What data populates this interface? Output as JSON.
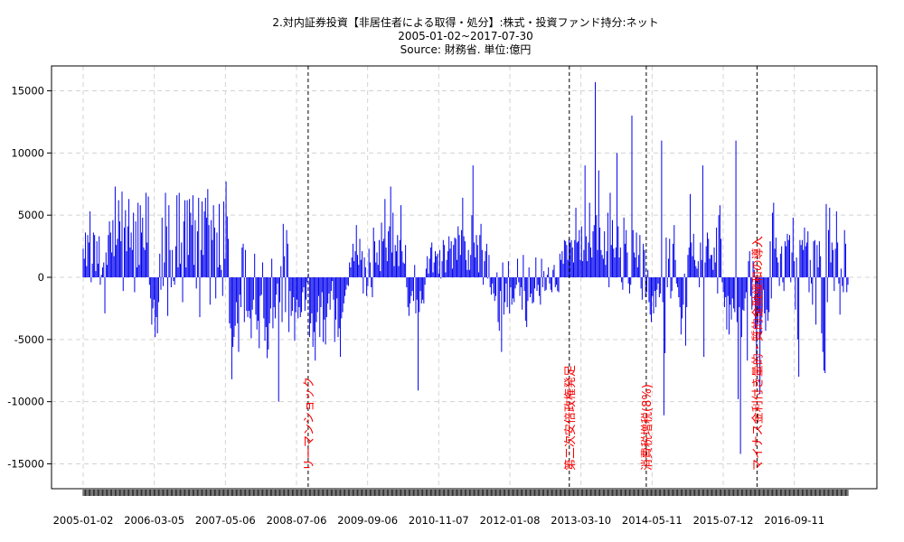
{
  "title": {
    "line1": "2.対内証券投資【非居住者による取得・処分】:株式・投資ファンド持分:ネット",
    "line2": "2005-01-02~2017-07-30",
    "line3": "Source: 財務省.  単位:億円"
  },
  "colors": {
    "bars": "#0000ee",
    "event_line": "#000000",
    "event_label": "#ff0000",
    "grid": "#d3d3d3"
  },
  "chart_data": {
    "type": "bar",
    "x_range": [
      "2005-01-02",
      "2017-07-30"
    ],
    "ylim": [
      -17000,
      17000
    ],
    "grid": true,
    "y_ticks": [
      -15000,
      -10000,
      -5000,
      0,
      5000,
      10000,
      15000
    ],
    "y_tick_labels": [
      "-15000",
      "-10000",
      "-5000",
      "0",
      "5000",
      "10000",
      "15000"
    ],
    "x_tick_labels": [
      "2005-01-02",
      "2006-03-05",
      "2007-05-06",
      "2008-07-06",
      "2009-09-06",
      "2010-11-07",
      "2012-01-08",
      "2013-03-10",
      "2014-05-11",
      "2015-07-12",
      "2016-09-11"
    ],
    "events": [
      {
        "label": "リーマンショック",
        "date": "2008-09-14"
      },
      {
        "label": "第二次安倍政権発足",
        "date": "2012-12-30"
      },
      {
        "label": "消費税増税(8%)",
        "date": "2014-04-06"
      },
      {
        "label": "マイナス金利付き量的・質的金融緩和の導入",
        "date": "2016-01-31"
      }
    ],
    "series": [
      {
        "values": [
          2300,
          1500,
          3600,
          900,
          3400,
          2800,
          5300,
          -400,
          1100,
          3600,
          3400,
          500,
          2900,
          1100,
          3300,
          -600,
          200,
          800,
          1200,
          -2900,
          2000,
          1000,
          3400,
          4500,
          3600,
          2000,
          4600,
          1700,
          7300,
          2600,
          3100,
          6200,
          4500,
          2900,
          6900,
          -1100,
          4000,
          5400,
          2100,
          4100,
          6300,
          2400,
          3600,
          2200,
          5200,
          -1200,
          4500,
          800,
          6000,
          1000,
          5800,
          3600,
          4800,
          2400,
          2200,
          6800,
          2800,
          6500,
          -600,
          -1700,
          -3800,
          -2500,
          -1800,
          -4800,
          -3200,
          -4500,
          -2000,
          1900,
          -1000,
          4800,
          -700,
          1200,
          6800,
          4100,
          -3100,
          5800,
          2200,
          -800,
          2200,
          -300,
          -600,
          2500,
          6600,
          800,
          6800,
          1100,
          2800,
          -2000,
          4500,
          6200,
          800,
          6200,
          1800,
          6300,
          5200,
          4200,
          6600,
          1000,
          4600,
          -900,
          3700,
          6400,
          -3200,
          2200,
          6100,
          1800,
          5300,
          6400,
          4800,
          7100,
          4200,
          -2200,
          4600,
          3000,
          5800,
          4000,
          -1700,
          3600,
          800,
          5900,
          1000,
          600,
          -1500,
          6100,
          1500,
          7700,
          4900,
          3100,
          -3700,
          -4100,
          -8200,
          -5600,
          -4800,
          -3900,
          -2000,
          -3700,
          -6000,
          -1400,
          -2400,
          2400,
          2700,
          -3600,
          2200,
          -2700,
          -3200,
          -2700,
          -3300,
          -4900,
          -2600,
          -1800,
          1900,
          -3000,
          -4200,
          -3500,
          -5700,
          -1500,
          -1400,
          1200,
          -3300,
          -5100,
          -4000,
          -6500,
          -5800,
          -3700,
          -2500,
          1500,
          -4100,
          -2400,
          -3300,
          -1400,
          -500,
          -10000,
          -2000,
          900,
          -3600,
          4300,
          1700,
          -2800,
          3800,
          2700,
          -4400,
          -1100,
          -3100,
          -2700,
          -1600,
          -5100,
          -2800,
          -1800,
          -3300,
          -2400,
          -3200,
          -2800,
          -1200,
          -800,
          -2700,
          -1800,
          -400,
          300,
          -4800,
          -3700,
          -2900,
          -5600,
          -4400,
          -6700,
          -3600,
          -2800,
          -1500,
          -4800,
          -2400,
          -1200,
          -5200,
          -3400,
          -5400,
          -3200,
          -2100,
          -1300,
          -2600,
          -1100,
          -300,
          -1800,
          -5200,
          -3400,
          -1700,
          -4800,
          -4100,
          -6400,
          -3300,
          -2800,
          -2100,
          -1500,
          -1000,
          -600,
          -700,
          1200,
          800,
          1600,
          2700,
          1300,
          2100,
          4200,
          1800,
          1000,
          3100,
          1400,
          2100,
          -1300,
          1600,
          800,
          -1500,
          -700,
          2300,
          1200,
          -800,
          -1600,
          4000,
          2900,
          1200,
          2000,
          1000,
          3000,
          500,
          4400,
          2900,
          3100,
          6300,
          2400,
          1300,
          3700,
          4100,
          7300,
          2000,
          5200,
          900,
          2600,
          2100,
          3400,
          900,
          3000,
          5800,
          2100,
          1200,
          1100,
          2600,
          -800,
          -2400,
          -3100,
          -2100,
          -1500,
          -1100,
          -1900,
          1000,
          -2900,
          -1800,
          -9100,
          -2800,
          -1100,
          -2100,
          -1800,
          -2100,
          -600,
          700,
          1700,
          300,
          1500,
          2400,
          2800,
          400,
          1200,
          2100,
          1700,
          1900,
          300,
          2200,
          -100,
          1300,
          3000,
          2600,
          400,
          1400,
          2100,
          3300,
          2300,
          2900,
          700,
          2600,
          3200,
          3100,
          1400,
          4100,
          3400,
          1800,
          3800,
          6400,
          3300,
          2900,
          1400,
          600,
          2200,
          600,
          1800,
          5000,
          9000,
          2800,
          1600,
          3400,
          2600,
          400,
          3400,
          4300,
          2200,
          -600,
          1300,
          2100,
          2700,
          -100,
          1800,
          -800,
          -1400,
          -500,
          -1300,
          -1900,
          -1500,
          400,
          -3600,
          -4300,
          -1100,
          -6000,
          1200,
          -3000,
          -2000,
          -500,
          -2400,
          1300,
          -2900,
          -800,
          -2200,
          -1700,
          -2000,
          -900,
          -600,
          1500,
          -400,
          -1500,
          -800,
          -2600,
          1800,
          -1100,
          -3500,
          -4000,
          -1900,
          800,
          -1600,
          -1300,
          -2100,
          -2000,
          -900,
          1600,
          -1100,
          -600,
          -1500,
          -2200,
          1500,
          -800,
          500,
          -1100,
          -1000,
          200,
          800,
          -500,
          -1000,
          -1200,
          600,
          1000,
          -800,
          -600,
          -1100,
          -1200,
          1900,
          1400,
          2100,
          1100,
          3000,
          2900,
          2600,
          1400,
          3100,
          2800,
          3000,
          2400,
          1200,
          3000,
          5600,
          2800,
          2900,
          3800,
          1400,
          4100,
          1300,
          2200,
          9000,
          3300,
          1300,
          2800,
          6000,
          2400,
          1600,
          3700,
          4200,
          15700,
          5000,
          2200,
          8600,
          4000,
          2200,
          1800,
          1500,
          3700,
          1000,
          2100,
          5200,
          -800,
          6800,
          2600,
          4600,
          2300,
          1600,
          2400,
          10000,
          4100,
          1600,
          2400,
          -400,
          -1000,
          4800,
          2700,
          3800,
          2000,
          -500,
          -1300,
          -600,
          13000,
          3800,
          2000,
          1600,
          3600,
          800,
          1800,
          3400,
          -900,
          -1800,
          2700,
          2200,
          -1600,
          -1200,
          600,
          -2000,
          -3000,
          -3600,
          -1500,
          -2900,
          -1100,
          -2400,
          -1000,
          -500,
          -1600,
          -1300,
          11000,
          -2000,
          -11100,
          -6100,
          3200,
          -800,
          1500,
          3100,
          -1700,
          -1100,
          2700,
          4200,
          1400,
          -500,
          -800,
          -1600,
          -2400,
          -4600,
          -3300,
          -2200,
          300,
          -5500,
          -2400,
          1800,
          2400,
          6700,
          2800,
          1700,
          3500,
          1400,
          900,
          700,
          1300,
          -800,
          2800,
          1400,
          9000,
          -6400,
          1200,
          2500,
          3600,
          3100,
          1500,
          1800,
          1800,
          600,
          2400,
          1200,
          4000,
          -1300,
          5000,
          5800,
          3100,
          -400,
          -1200,
          -2400,
          -1600,
          -4200,
          -1500,
          -4600,
          -2200,
          -3400,
          -1700,
          -2500,
          -2800,
          11000,
          -3600,
          -9800,
          -2400,
          -14200,
          -4800,
          -2600,
          -2700,
          -1700,
          -1200,
          -6700,
          1300,
          2100,
          -1500,
          -2600,
          1300,
          600,
          -4100,
          -7000,
          -3800,
          -2900,
          -9400,
          -4600,
          -2800,
          -1000,
          -2900,
          -4300,
          -2600,
          -3500,
          -2800,
          2900,
          -1700,
          5200,
          6000,
          2300,
          3200,
          1600,
          1200,
          -700,
          1900,
          2500,
          -400,
          -1100,
          2900,
          2500,
          3500,
          3000,
          3400,
          -400,
          2000,
          4800,
          1300,
          -2600,
          1600,
          -5000,
          -8000,
          3000,
          2600,
          3000,
          2200,
          4000,
          2500,
          2800,
          3700,
          -1200,
          1400,
          -500,
          -2200,
          2900,
          3000,
          -3800,
          2600,
          800,
          2900,
          1700,
          -4500,
          -6000,
          -7500,
          -7700,
          5900,
          -2000,
          3800,
          5600,
          1200,
          2800,
          2200,
          -1100,
          2300,
          5300,
          2800,
          -500,
          -3000,
          700,
          -700,
          -1200,
          3800,
          2700,
          -1200,
          -600
        ]
      }
    ]
  }
}
